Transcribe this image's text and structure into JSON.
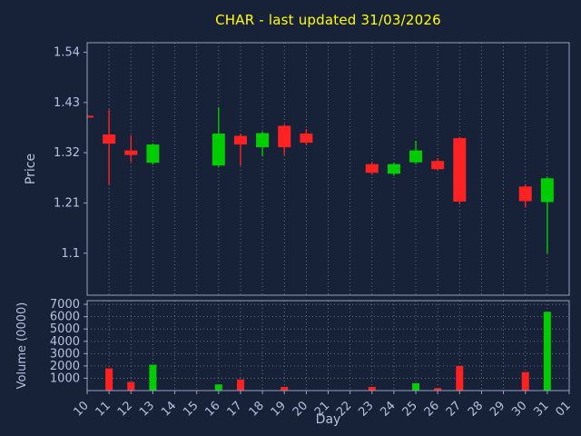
{
  "chart_data": {
    "type": "candlestick",
    "title": "CHAR - last updated 31/03/2026",
    "xlabel": "Day",
    "price_axis": {
      "label": "Price",
      "ticks": [
        1.1,
        1.21,
        1.32,
        1.43,
        1.54
      ],
      "ylim": [
        1.008,
        1.561
      ]
    },
    "volume_axis": {
      "label": "Volume (0000)",
      "ticks": [
        1000,
        2000,
        3000,
        4000,
        5000,
        6000,
        7000
      ],
      "ylim": [
        0,
        7300
      ]
    },
    "x_labels": [
      "10",
      "11",
      "12",
      "13",
      "14",
      "15",
      "16",
      "17",
      "18",
      "19",
      "20",
      "21",
      "22",
      "23",
      "24",
      "25",
      "26",
      "27",
      "28",
      "29",
      "30",
      "31",
      "01"
    ],
    "colors": {
      "up": "#00cc00",
      "down": "#ff2222",
      "background": "#172238",
      "grid": "#8a93a8",
      "tick_text": "#b6c2dd",
      "title": "#ffff00",
      "spine": "#96a3c0"
    },
    "candles": [
      {
        "day": "10",
        "open": 1.401,
        "high": 1.403,
        "low": 1.396,
        "close": 1.398,
        "volume": 0
      },
      {
        "day": "11",
        "open": 1.36,
        "high": 1.415,
        "low": 1.25,
        "close": 1.34,
        "volume": 1800
      },
      {
        "day": "12",
        "open": 1.325,
        "high": 1.358,
        "low": 1.3,
        "close": 1.315,
        "volume": 700
      },
      {
        "day": "13",
        "open": 1.298,
        "high": 1.34,
        "low": 1.294,
        "close": 1.338,
        "volume": 2100
      },
      {
        "day": "16",
        "open": 1.292,
        "high": 1.42,
        "low": 1.288,
        "close": 1.362,
        "volume": 500
      },
      {
        "day": "17",
        "open": 1.357,
        "high": 1.362,
        "low": 1.292,
        "close": 1.338,
        "volume": 900
      },
      {
        "day": "18",
        "open": 1.332,
        "high": 1.366,
        "low": 1.312,
        "close": 1.363,
        "volume": 0
      },
      {
        "day": "19",
        "open": 1.379,
        "high": 1.382,
        "low": 1.315,
        "close": 1.332,
        "volume": 300
      },
      {
        "day": "20",
        "open": 1.362,
        "high": 1.372,
        "low": 1.338,
        "close": 1.342,
        "volume": 0
      },
      {
        "day": "23",
        "open": 1.295,
        "high": 1.3,
        "low": 1.272,
        "close": 1.276,
        "volume": 300
      },
      {
        "day": "24",
        "open": 1.274,
        "high": 1.298,
        "low": 1.27,
        "close": 1.295,
        "volume": 0
      },
      {
        "day": "25",
        "open": 1.299,
        "high": 1.346,
        "low": 1.295,
        "close": 1.325,
        "volume": 600
      },
      {
        "day": "26",
        "open": 1.302,
        "high": 1.308,
        "low": 1.282,
        "close": 1.284,
        "volume": 200
      },
      {
        "day": "27",
        "open": 1.352,
        "high": 1.355,
        "low": 1.207,
        "close": 1.213,
        "volume": 2000
      },
      {
        "day": "30",
        "open": 1.246,
        "high": 1.251,
        "low": 1.2,
        "close": 1.214,
        "volume": 1500
      },
      {
        "day": "31",
        "open": 1.212,
        "high": 1.268,
        "low": 1.1,
        "close": 1.264,
        "volume": 6400
      }
    ]
  }
}
